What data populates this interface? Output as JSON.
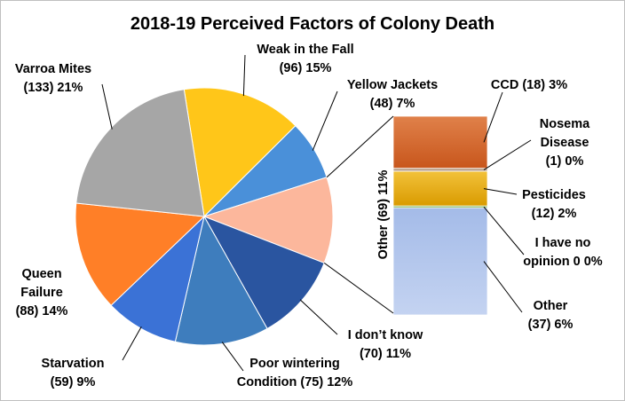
{
  "chart_data": {
    "type": "bar-of-pie",
    "title": "2018-19 Perceived Factors of Colony Death",
    "pie": {
      "slices": [
        {
          "name": "Weak in the Fall",
          "count": 96,
          "percent": 15,
          "color": "#ffc619",
          "label_lines": [
            "Weak in the Fall",
            "(96) 15%"
          ]
        },
        {
          "name": "Yellow Jackets",
          "count": 48,
          "percent": 7,
          "color": "#4a90d9",
          "label_lines": [
            "Yellow Jackets",
            "(48) 7%"
          ]
        },
        {
          "name": "Other",
          "count": 69,
          "percent": 11,
          "color": "#fcb79c",
          "label_lines": [
            "Other (69) 11%"
          ]
        },
        {
          "name": "I don’t know",
          "count": 70,
          "percent": 11,
          "color": "#2a55a0",
          "label_lines": [
            "I don’t know",
            "(70) 11%"
          ]
        },
        {
          "name": "Poor wintering Condition",
          "count": 75,
          "percent": 12,
          "color": "#3e7dbd",
          "label_lines": [
            "Poor wintering",
            "Condition  (75) 12%"
          ]
        },
        {
          "name": "Starvation",
          "count": 59,
          "percent": 9,
          "color": "#3b72d6",
          "label_lines": [
            "Starvation",
            "(59) 9%"
          ]
        },
        {
          "name": "Queen Failure",
          "count": 88,
          "percent": 14,
          "color": "#ff7f27",
          "label_lines": [
            "Queen",
            "Failure",
            "(88) 14%"
          ]
        },
        {
          "name": "Varroa Mites",
          "count": 133,
          "percent": 21,
          "color": "#a6a6a6",
          "label_lines": [
            "Varroa Mites",
            "(133) 21%"
          ]
        }
      ]
    },
    "bar": {
      "segments": [
        {
          "name": "CCD",
          "count": 18,
          "percent": 3,
          "color": "#d66b33",
          "label_lines": [
            "CCD (18) 3%"
          ]
        },
        {
          "name": "Nosema Disease",
          "count": 1,
          "percent": 0,
          "color": "#b9a08a",
          "label_lines": [
            "Nosema",
            "Disease",
            "(1) 0%"
          ]
        },
        {
          "name": "Pesticides",
          "count": 12,
          "percent": 2,
          "color": "#e6a800",
          "label_lines": [
            "Pesticides",
            "(12) 2%"
          ]
        },
        {
          "name": "I have no opinion",
          "count": 0,
          "percent": 0,
          "color": "#70ad47",
          "label_lines": [
            "I have no",
            "opinion 0 0%"
          ]
        },
        {
          "name": "Other",
          "count": 37,
          "percent": 6,
          "color": "#a9bfea",
          "label_lines": [
            "Other",
            "(37) 6%"
          ]
        }
      ]
    }
  }
}
